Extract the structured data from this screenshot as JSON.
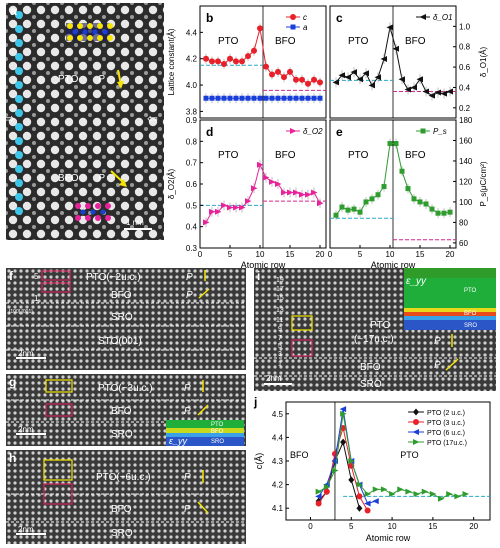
{
  "panels": {
    "a": {
      "label": "a",
      "pto": "PTO",
      "bfo": "BFO",
      "P": "P",
      "scale": "1 nm",
      "left_arrow": "⇨",
      "right_arrow": "⇦"
    },
    "b": {
      "label": "b",
      "ylabel": "Lattice constant(Å)",
      "xlabel": "",
      "pto": "PTO",
      "bfo": "BFO",
      "legend": [
        "c",
        "a"
      ]
    },
    "c": {
      "label": "c",
      "ylabel": "δ_O1(Å)",
      "pto": "PTO",
      "bfo": "BFO",
      "legend": [
        "δ_O1"
      ]
    },
    "d": {
      "label": "d",
      "ylabel": "δ_O2(Å)",
      "xlabel": "Atomic row",
      "pto": "PTO",
      "bfo": "BFO",
      "legend": [
        "δ_O2"
      ]
    },
    "e": {
      "label": "e",
      "ylabel": "P_s(μC/cm²)",
      "xlabel": "Atomic row",
      "pto": "PTO",
      "bfo": "BFO",
      "legend": [
        "P_s"
      ]
    },
    "f": {
      "label": "f",
      "pto": "PTO(~2u.c.)",
      "bfo": "BFO",
      "sro": "SRO",
      "sto": "STO(001)",
      "scale": "2nm",
      "P": "P",
      "row5": "5",
      "row1": "1",
      "side": "[100] [001]",
      "scale_inner": "0.5nm"
    },
    "g": {
      "label": "g",
      "pto": "PTO(~3u.c.)",
      "bfo": "BFO",
      "sro": "SRO",
      "scale": "2nm",
      "P": "P",
      "inset": {
        "eps": "ε_yy",
        "pto": "PTO",
        "bfo": "BFO",
        "sro": "SRO"
      }
    },
    "h": {
      "label": "h",
      "pto": "PTO(~6u.c.)",
      "bfo": "BFO",
      "sro": "SRO",
      "scale": "2nm",
      "P": "P"
    },
    "i": {
      "label": "i",
      "pto": "PTO",
      "pto_thick": "(~17u.c.)",
      "bfo": "BFO",
      "sro": "SRO",
      "scale": "2nm",
      "P": "P",
      "rows": [
        "19",
        "17",
        "15",
        "13",
        "11",
        "9",
        "7",
        "5",
        "3",
        "1"
      ],
      "inset": {
        "eps": "ε_yy",
        "pto": "PTO",
        "bfo": "BFO",
        "sro": "SRO"
      }
    },
    "j": {
      "label": "j",
      "ylabel": "c(Å)",
      "xlabel": "Atomic row",
      "bfo": "BFO",
      "pto": "PTO"
    }
  },
  "colors": {
    "red": "#e8202a",
    "blue": "#1a3fd8",
    "black": "#111111",
    "pink": "#e8229a",
    "green": "#2e9c2e",
    "cyan": "#2aa7c8",
    "magenta_dash": "#d6248a",
    "yellow": "#f4e400"
  },
  "chart_data": [
    {
      "id": "b",
      "type": "line",
      "xlim": [
        0,
        21
      ],
      "ylim": [
        3.75,
        4.6
      ],
      "series": [
        {
          "name": "c",
          "x": [
            1,
            2,
            3,
            4,
            5,
            6,
            7,
            8,
            9,
            10,
            11,
            12,
            13,
            14,
            15,
            16,
            17,
            18,
            19,
            20
          ],
          "values": [
            4.2,
            4.18,
            4.18,
            4.16,
            4.2,
            4.18,
            4.18,
            4.22,
            4.26,
            4.43,
            4.14,
            4.08,
            4.1,
            4.06,
            4.1,
            4.04,
            4.04,
            4.01,
            4.04,
            4.02
          ]
        },
        {
          "name": "a",
          "x": [
            1,
            2,
            3,
            4,
            5,
            6,
            7,
            8,
            9,
            10,
            11,
            12,
            13,
            14,
            15,
            16,
            17,
            18,
            19,
            20
          ],
          "values": [
            3.9,
            3.9,
            3.9,
            3.9,
            3.9,
            3.9,
            3.9,
            3.9,
            3.9,
            3.9,
            3.9,
            3.9,
            3.9,
            3.9,
            3.9,
            3.9,
            3.9,
            3.9,
            3.9,
            3.9
          ]
        }
      ],
      "reference_lines": [
        {
          "y": 4.15,
          "range": [
            0,
            10.5
          ],
          "color": "cyan"
        },
        {
          "y": 3.96,
          "range": [
            10.5,
            21
          ],
          "color": "magenta"
        }
      ],
      "yticks": [
        3.8,
        4.0,
        4.2,
        4.4
      ],
      "xticks": []
    },
    {
      "id": "c",
      "type": "line",
      "xlim": [
        0,
        21
      ],
      "ylim": [
        0.1,
        1.2
      ],
      "series": [
        {
          "name": "δ_O1",
          "x": [
            1,
            2,
            3,
            4,
            5,
            6,
            7,
            8,
            9,
            10,
            11,
            12,
            13,
            14,
            15,
            16,
            17,
            18,
            19,
            20
          ],
          "values": [
            0.45,
            0.52,
            0.5,
            0.55,
            0.48,
            0.54,
            0.42,
            0.5,
            0.68,
            0.99,
            0.78,
            0.48,
            0.38,
            0.4,
            0.48,
            0.36,
            0.32,
            0.35,
            0.34,
            0.36
          ]
        }
      ],
      "reference_lines": [
        {
          "y": 0.47,
          "range": [
            0,
            10.5
          ],
          "color": "cyan"
        },
        {
          "y": 0.36,
          "range": [
            10.5,
            21
          ],
          "color": "magenta"
        }
      ],
      "yticks": [
        0.2,
        0.4,
        0.6,
        0.8,
        1.0
      ],
      "xticks": []
    },
    {
      "id": "d",
      "type": "line",
      "xlim": [
        0,
        21
      ],
      "ylim": [
        0.3,
        0.9
      ],
      "series": [
        {
          "name": "δ_O2",
          "x": [
            1,
            2,
            3,
            4,
            5,
            6,
            7,
            8,
            9,
            10,
            11,
            12,
            13,
            14,
            15,
            16,
            17,
            18,
            19,
            20
          ],
          "values": [
            0.42,
            0.47,
            0.47,
            0.5,
            0.49,
            0.49,
            0.49,
            0.52,
            0.58,
            0.69,
            0.63,
            0.61,
            0.6,
            0.56,
            0.56,
            0.56,
            0.55,
            0.55,
            0.56,
            0.51
          ]
        }
      ],
      "reference_lines": [
        {
          "y": 0.5,
          "range": [
            0,
            10.5
          ],
          "color": "cyan"
        },
        {
          "y": 0.52,
          "range": [
            10.5,
            21
          ],
          "color": "magenta"
        }
      ],
      "yticks": [
        0.3,
        0.4,
        0.5,
        0.6,
        0.7,
        0.8,
        0.9
      ],
      "xticks": [
        0,
        5,
        10,
        15,
        20
      ]
    },
    {
      "id": "e",
      "type": "line",
      "xlim": [
        0,
        21
      ],
      "ylim": [
        55,
        180
      ],
      "series": [
        {
          "name": "P_s",
          "x": [
            1,
            2,
            3,
            4,
            5,
            6,
            7,
            8,
            9,
            10,
            11,
            12,
            13,
            14,
            15,
            16,
            17,
            18,
            19,
            20
          ],
          "values": [
            87,
            95,
            92,
            93,
            90,
            100,
            103,
            107,
            115,
            157,
            157,
            130,
            113,
            103,
            100,
            98,
            93,
            89,
            89,
            90
          ]
        }
      ],
      "reference_lines": [
        {
          "y": 84,
          "range": [
            0,
            10.5
          ],
          "color": "cyan"
        },
        {
          "y": 63,
          "range": [
            10.5,
            21
          ],
          "color": "magenta"
        }
      ],
      "yticks": [
        60,
        80,
        100,
        120,
        140,
        160,
        180
      ],
      "xticks": [
        0,
        5,
        10,
        15,
        20
      ]
    },
    {
      "id": "j",
      "type": "line",
      "xlim": [
        -3,
        22
      ],
      "ylim": [
        4.05,
        4.55
      ],
      "series": [
        {
          "name": "PTO (2 u.c.)",
          "color": "black",
          "x": [
            1,
            2,
            3,
            4,
            5,
            6
          ],
          "values": [
            4.13,
            4.17,
            4.3,
            4.38,
            4.22,
            4.1
          ]
        },
        {
          "name": "PTO (3 u.c.)",
          "color": "red",
          "x": [
            1,
            2,
            3,
            4,
            5,
            6,
            7
          ],
          "values": [
            4.12,
            4.17,
            4.33,
            4.44,
            4.28,
            4.15,
            4.09
          ]
        },
        {
          "name": "PTO (6 u.c.)",
          "color": "blue",
          "x": [
            1,
            2,
            3,
            4,
            5,
            6,
            7,
            8
          ],
          "values": [
            4.15,
            4.2,
            4.3,
            4.52,
            4.3,
            4.2,
            4.12,
            4.13
          ]
        },
        {
          "name": "PTO (17u.c.)",
          "color": "green",
          "x": [
            1,
            2,
            3,
            4,
            5,
            6,
            7,
            8,
            9,
            10,
            11,
            12,
            13,
            14,
            15,
            16,
            17,
            18,
            19
          ],
          "values": [
            4.17,
            4.19,
            4.26,
            4.5,
            4.3,
            4.2,
            4.16,
            4.18,
            4.18,
            4.16,
            4.18,
            4.17,
            4.16,
            4.17,
            4.16,
            4.14,
            4.16,
            4.15,
            4.16
          ]
        }
      ],
      "reference_lines": [
        {
          "y": 4.15,
          "range": [
            4,
            22
          ],
          "color": "cyan"
        }
      ],
      "vline": 3,
      "yticks": [
        4.1,
        4.2,
        4.3,
        4.4,
        4.5
      ],
      "xticks": [
        0,
        5,
        10,
        15,
        20
      ]
    }
  ]
}
